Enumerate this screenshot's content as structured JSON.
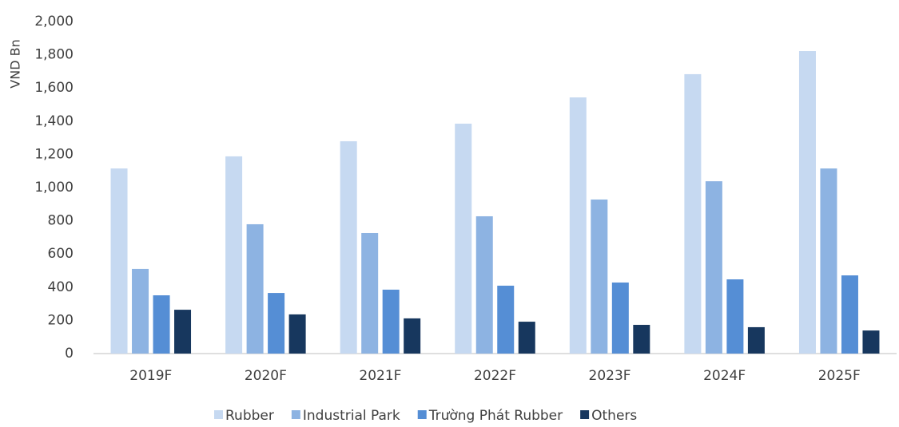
{
  "chart_data": {
    "type": "bar",
    "y_label": "VND Bn",
    "categories": [
      "2019F",
      "2020F",
      "2021F",
      "2022F",
      "2023F",
      "2024F",
      "2025F"
    ],
    "series": [
      {
        "name": "Rubber",
        "color": "#c6d9f1",
        "values": [
          1115,
          1188,
          1279,
          1385,
          1543,
          1683,
          1822
        ]
      },
      {
        "name": "Industrial Park",
        "color": "#8db3e2",
        "values": [
          510,
          779,
          726,
          827,
          928,
          1038,
          1115
        ]
      },
      {
        "name": "Trường Phát Rubber",
        "color": "#558ed5",
        "values": [
          351,
          365,
          385,
          409,
          428,
          447,
          471
        ]
      },
      {
        "name": "Others",
        "color": "#17375e",
        "values": [
          264,
          236,
          212,
          192,
          173,
          159,
          139
        ]
      }
    ],
    "ylim": [
      0,
      2000
    ],
    "yticks": [
      0,
      200,
      400,
      600,
      800,
      {
        "value": 1000,
        "label": "1,000"
      },
      {
        "value": 1200,
        "label": "1,200"
      },
      {
        "value": 1400,
        "label": "1,400"
      },
      {
        "value": 1600,
        "label": "1,600"
      },
      {
        "value": 1800,
        "label": "1,800"
      },
      {
        "value": 2000,
        "label": "2,000"
      }
    ],
    "grid": false,
    "legend": "bottom"
  }
}
